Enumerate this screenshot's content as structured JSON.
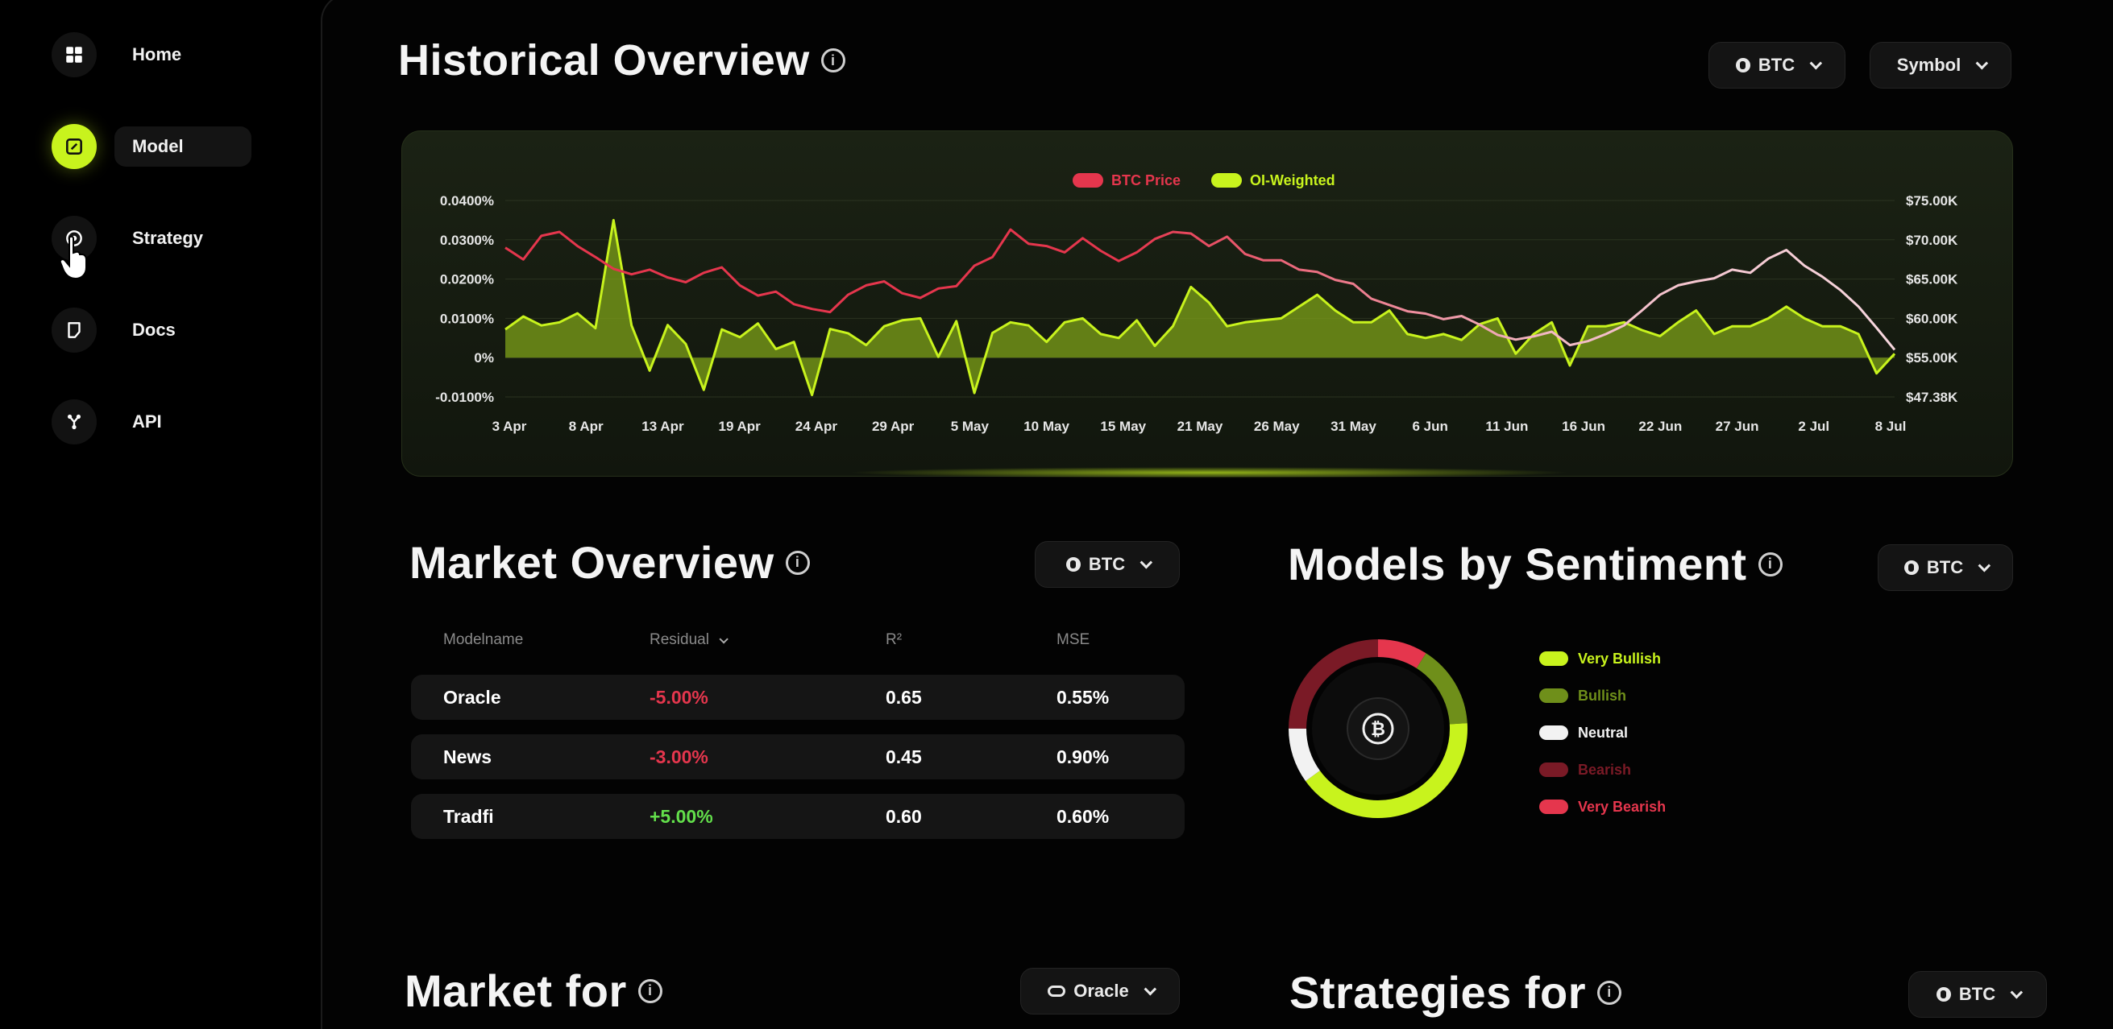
{
  "sidebar": {
    "items": [
      {
        "label": "Home",
        "icon": "grid-icon"
      },
      {
        "label": "Model",
        "icon": "model-icon",
        "active": true
      },
      {
        "label": "Strategy",
        "icon": "strategy-icon"
      },
      {
        "label": "Docs",
        "icon": "docs-icon"
      },
      {
        "label": "API",
        "icon": "api-icon"
      }
    ]
  },
  "historical": {
    "title": "Historical Overview",
    "asset_select": "BTC",
    "symbol_select": "Symbol"
  },
  "market_overview": {
    "title": "Market Overview",
    "asset_select": "BTC",
    "columns": [
      "Modelname",
      "Residual",
      "R²",
      "MSE"
    ],
    "rows": [
      {
        "name": "Oracle",
        "residual": "-5.00%",
        "r2": "0.65",
        "mse": "0.55%"
      },
      {
        "name": "News",
        "residual": "-3.00%",
        "r2": "0.45",
        "mse": "0.90%"
      },
      {
        "name": "Tradfi",
        "residual": "+5.00%",
        "r2": "0.60",
        "mse": "0.60%"
      }
    ]
  },
  "sentiment": {
    "title": "Models by Sentiment",
    "asset_select": "BTC",
    "center_symbol": "₿",
    "legend": [
      {
        "label": "Very Bullish",
        "color": "#c8f31d"
      },
      {
        "label": "Bullish",
        "color": "#6f8f1a"
      },
      {
        "label": "Neutral",
        "color": "#f2f2f2"
      },
      {
        "label": "Bearish",
        "color": "#7a1a26"
      },
      {
        "label": "Very Bearish",
        "color": "#e5364d"
      }
    ],
    "segments": [
      {
        "label": "Very Bearish",
        "value": 9,
        "color": "#e5364d"
      },
      {
        "label": "Bullish",
        "value": 15,
        "color": "#6f8f1a"
      },
      {
        "label": "Very Bullish",
        "value": 41,
        "color": "#c8f31d"
      },
      {
        "label": "Neutral",
        "value": 10,
        "color": "#f2f2f2"
      },
      {
        "label": "Bearish",
        "value": 25,
        "color": "#7a1a26"
      }
    ]
  },
  "market_for": {
    "title": "Market for",
    "model_select": "Oracle"
  },
  "strategies_for": {
    "title": "Strategies for",
    "asset_select": "BTC"
  },
  "chart_data": {
    "type": "line",
    "legend": [
      "BTC Price",
      "OI-Weighted"
    ],
    "x_ticks": [
      "3 Apr",
      "8 Apr",
      "13 Apr",
      "19 Apr",
      "24 Apr",
      "29 Apr",
      "5 May",
      "10 May",
      "15 May",
      "21 May",
      "26 May",
      "31 May",
      "6 Jun",
      "11 Jun",
      "16 Jun",
      "22 Jun",
      "27 Jun",
      "2 Jul",
      "8 Jul"
    ],
    "y_left_ticks": [
      "0.0400%",
      "0.0300%",
      "0.0200%",
      "0.0100%",
      "0%",
      "-0.0100%"
    ],
    "y_right_ticks": [
      "$75.00K",
      "$70.00K",
      "$65.00K",
      "$60.00K",
      "$55.00K",
      "$47.38K"
    ],
    "y_left_range": [
      -0.01,
      0.04
    ],
    "y_right_range": [
      50000,
      75000
    ],
    "legend_placement": "top-center",
    "series": [
      {
        "name": "BTC Price",
        "axis": "right",
        "color": "#e5364d",
        "values": [
          69000,
          67500,
          70500,
          71000,
          69200,
          67800,
          66300,
          65600,
          66200,
          65200,
          64600,
          65800,
          66500,
          64200,
          62900,
          63400,
          61800,
          61200,
          60800,
          63000,
          64200,
          64700,
          63200,
          62600,
          63800,
          64100,
          66700,
          67800,
          71300,
          69500,
          69200,
          68400,
          70200,
          68600,
          67300,
          68400,
          70100,
          71000,
          70800,
          69200,
          70400,
          68200,
          67400,
          67400,
          66200,
          65900,
          64900,
          64400,
          62500,
          61700,
          60900,
          60600,
          59900,
          60300,
          59200,
          57900,
          57300,
          57700,
          58300,
          56600,
          57100,
          58000,
          59100,
          61000,
          63000,
          64200,
          64700,
          65100,
          66200,
          65800,
          67600,
          68700,
          66700,
          65300,
          63600,
          61500,
          58800,
          56000
        ]
      },
      {
        "name": "OI-Weighted",
        "axis": "left",
        "color": "#c8f31d",
        "values": [
          0.0072,
          0.0105,
          0.0082,
          0.009,
          0.0113,
          0.0075,
          0.035,
          0.0082,
          -0.0033,
          0.0083,
          0.0035,
          -0.0082,
          0.0072,
          0.0052,
          0.0087,
          0.0022,
          0.004,
          -0.0095,
          0.0073,
          0.0062,
          0.0032,
          0.008,
          0.0095,
          0.01,
          0.0002,
          0.0093,
          -0.009,
          0.0063,
          0.009,
          0.0082,
          0.004,
          0.009,
          0.01,
          0.006,
          0.005,
          0.0095,
          0.003,
          0.008,
          0.018,
          0.014,
          0.008,
          0.009,
          0.0095,
          0.01,
          0.013,
          0.016,
          0.012,
          0.009,
          0.009,
          0.012,
          0.006,
          0.005,
          0.006,
          0.0045,
          0.0085,
          0.01,
          0.001,
          0.006,
          0.009,
          -0.002,
          0.008,
          0.008,
          0.009,
          0.007,
          0.0055,
          0.009,
          0.012,
          0.006,
          0.008,
          0.008,
          0.01,
          0.013,
          0.01,
          0.008,
          0.008,
          0.006,
          -0.004,
          0.001
        ]
      }
    ]
  }
}
